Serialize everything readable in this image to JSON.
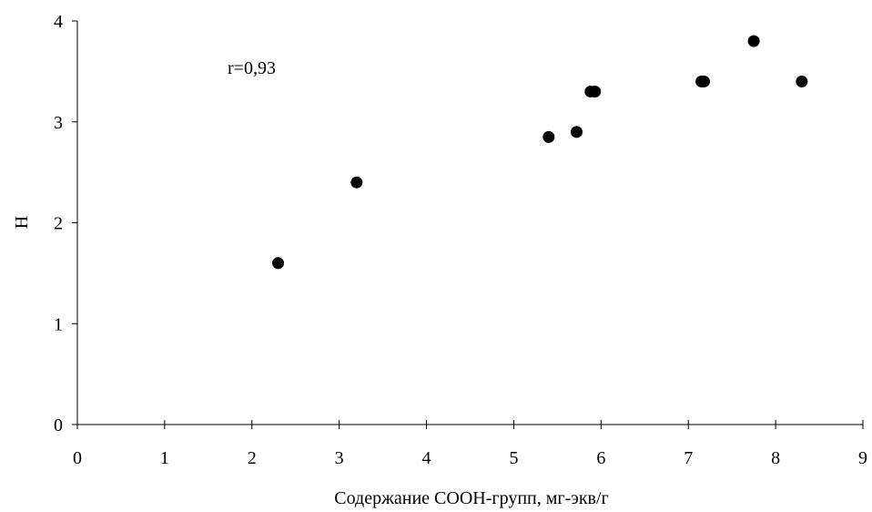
{
  "chart_data": {
    "type": "scatter",
    "title": "",
    "xlabel": "Содержание СООН-групп, мг-экв/г",
    "ylabel": "Н",
    "xlim": [
      0,
      9
    ],
    "ylim": [
      0,
      4
    ],
    "x_ticks": [
      "0",
      "1",
      "2",
      "3",
      "4",
      "5",
      "6",
      "7",
      "8",
      "9"
    ],
    "y_ticks": [
      "0",
      "1",
      "2",
      "3",
      "4"
    ],
    "grid": false,
    "legend": "none",
    "annotation": "r=0,93",
    "series": [
      {
        "x": [
          2.3,
          3.2,
          5.4,
          5.72,
          5.88,
          5.93,
          7.15,
          7.18,
          7.75,
          8.3
        ],
        "y": [
          1.6,
          2.4,
          2.85,
          2.9,
          3.3,
          3.3,
          3.4,
          3.4,
          3.8,
          3.4
        ],
        "color": "#000000"
      }
    ]
  }
}
